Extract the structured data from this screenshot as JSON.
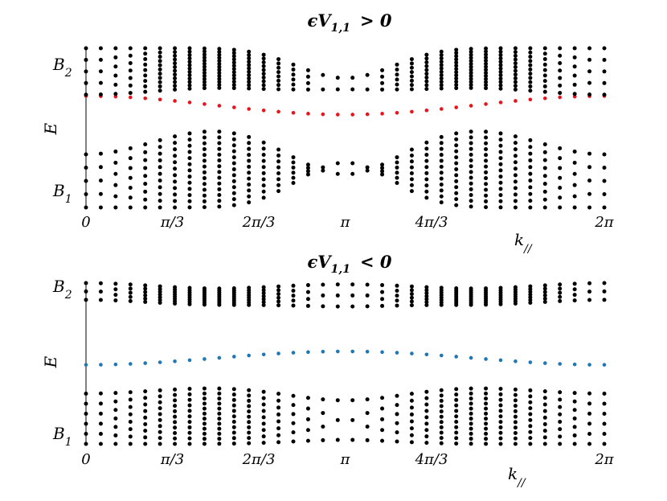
{
  "chart_data": [
    {
      "type": "scatter",
      "title_main": "ϵV",
      "title_sub": "1,1",
      "title_rel": "> 0",
      "ylabel": "E",
      "xlabel_main": "k",
      "xlabel_sub": "//",
      "band_labels": [
        {
          "main": "B",
          "sub": "2"
        },
        {
          "main": "B",
          "sub": "1"
        }
      ],
      "xlim": [
        0,
        6.2832
      ],
      "ylim": [
        -0.2,
        2.2
      ],
      "xticks": [
        0,
        1.0472,
        2.0944,
        3.1416,
        4.1888,
        6.2832
      ],
      "xtick_labels": [
        "0",
        "π/3",
        "2π/3",
        "π",
        "4π/3",
        "2π"
      ],
      "n_k": 36,
      "bulk_color": "#000000",
      "edge_color": "#e8141b",
      "upper_band": {
        "min_gap_edge": 1.5,
        "max_gap_edge": 1.2,
        "top": 2.2
      },
      "lower_band": {
        "max_gap_edge": 0.55,
        "min_gap_edge": 0.85,
        "bottom": -0.2
      },
      "edge_state": {
        "ends": 1.48,
        "middle": 1.2
      }
    },
    {
      "type": "scatter",
      "title_main": "ϵV",
      "title_sub": "1,1",
      "title_rel": "< 0",
      "ylabel": "E",
      "xlabel_main": "k",
      "xlabel_sub": "//",
      "band_labels": [
        {
          "main": "B",
          "sub": "2"
        },
        {
          "main": "B",
          "sub": "1"
        }
      ],
      "xlim": [
        0,
        6.2832
      ],
      "ylim": [
        -0.2,
        2.2
      ],
      "xticks": [
        0,
        1.0472,
        2.0944,
        3.1416,
        4.1888,
        6.2832
      ],
      "xtick_labels": [
        "0",
        "π/3",
        "2π/3",
        "π",
        "4π/3",
        "2π"
      ],
      "n_k": 36,
      "bulk_color": "#000000",
      "edge_color": "#1f77b4",
      "upper_band": {
        "gap_edge_ends": 1.95,
        "gap_edge_middle": 1.82,
        "top": 2.2
      },
      "lower_band": {
        "gap_edge_ends": 0.55,
        "gap_edge_middle": 0.42,
        "bottom": -0.2
      },
      "edge_state": {
        "ends": 0.98,
        "middle": 1.18
      }
    }
  ]
}
